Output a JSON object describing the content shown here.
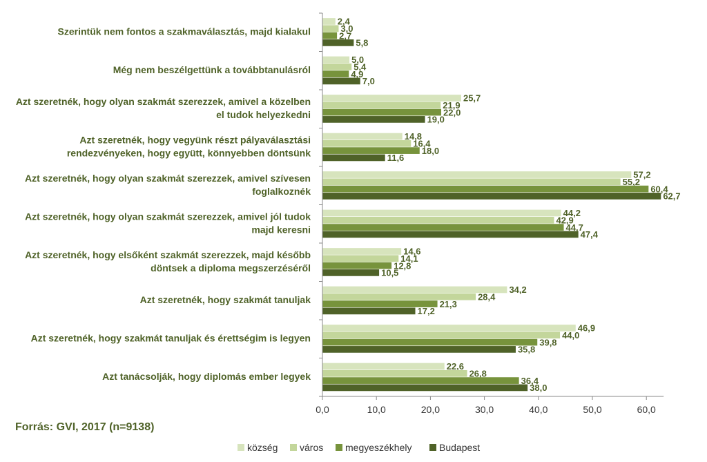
{
  "source": "Forrás: GVI, 2017 (n=9138)",
  "chart_data": {
    "type": "bar",
    "orientation": "horizontal",
    "xlim": [
      0,
      60
    ],
    "xticks": [
      "0,0",
      "10,0",
      "20,0",
      "30,0",
      "40,0",
      "50,0",
      "60,0"
    ],
    "grid": false,
    "legend_position": "bottom",
    "categories": [
      [
        "Szerintük nem fontos a szakmaválasztás, majd kialakul"
      ],
      [
        "Még nem beszélgettünk a továbbtanulásról"
      ],
      [
        "Azt szeretnék, hogy olyan szakmát szerezzek, amivel a közelben",
        "el tudok helyezkedni"
      ],
      [
        "Azt szeretnék, hogy vegyünk részt pályaválasztási",
        "rendezvényeken, hogy együtt, könnyebben döntsünk"
      ],
      [
        "Azt szeretnék, hogy olyan szakmát szerezzek, amivel szívesen",
        "foglalkoznék"
      ],
      [
        "Azt szeretnék, hogy olyan szakmát szerezzek, amivel jól tudok",
        "majd keresni"
      ],
      [
        "Azt szeretnék, hogy elsőként szakmát szerezzek, majd később",
        "döntsek a diploma megszerzéséről"
      ],
      [
        "Azt szeretnék, hogy szakmát tanuljak"
      ],
      [
        "Azt szeretnék, hogy szakmát tanuljak és érettségim is legyen"
      ],
      [
        "Azt tanácsolják, hogy diplomás ember legyek"
      ]
    ],
    "series": [
      {
        "name": "község",
        "color": "#d7e4bd",
        "values": [
          2.4,
          5.0,
          25.7,
          14.8,
          57.2,
          44.2,
          14.6,
          34.2,
          46.9,
          22.6
        ],
        "labels": [
          "2,4",
          "5,0",
          "25,7",
          "14,8",
          "57,2",
          "44,2",
          "14,6",
          "34,2",
          "46,9",
          "22,6"
        ]
      },
      {
        "name": "város",
        "color": "#c3d69b",
        "values": [
          3.0,
          5.4,
          21.9,
          16.4,
          55.2,
          42.9,
          14.1,
          28.4,
          44.0,
          26.8
        ],
        "labels": [
          "3,0",
          "5,4",
          "21,9",
          "16,4",
          "55,2",
          "42,9",
          "14,1",
          "28,4",
          "44,0",
          "26,8"
        ]
      },
      {
        "name": "megyeszékhely",
        "color": "#77933c",
        "values": [
          2.7,
          4.9,
          22.0,
          18.0,
          60.4,
          44.7,
          12.8,
          21.3,
          39.8,
          36.4
        ],
        "labels": [
          "2,7",
          "4,9",
          "22,0",
          "18,0",
          "60,4",
          "44,7",
          "12,8",
          "21,3",
          "39,8",
          "36,4"
        ]
      },
      {
        "name": "Budapest",
        "color": "#4f6228",
        "values": [
          5.8,
          7.0,
          19.0,
          11.6,
          62.7,
          47.4,
          10.5,
          17.2,
          35.8,
          38.0
        ],
        "labels": [
          "5,8",
          "7,0",
          "19,0",
          "11,6",
          "62,7",
          "47,4",
          "10,5",
          "17,2",
          "35,8",
          "38,0"
        ]
      }
    ]
  }
}
